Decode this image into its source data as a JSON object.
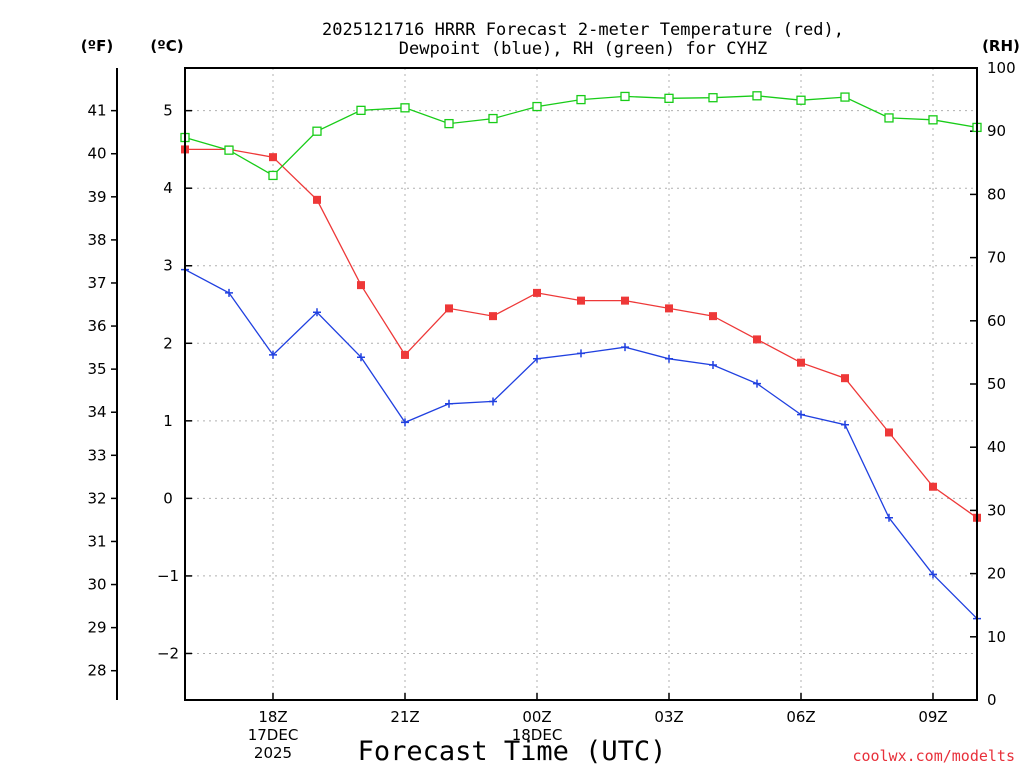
{
  "chart_data": {
    "type": "line",
    "title": [
      "2025121716 HRRR Forecast 2-meter Temperature (red),",
      "Dewpoint (blue), RH (green) for CYHZ"
    ],
    "xlabel": "Forecast Time (UTC)",
    "x": [
      "16Z",
      "17Z",
      "18Z",
      "19Z",
      "20Z",
      "21Z",
      "22Z",
      "23Z",
      "00Z",
      "01Z",
      "02Z",
      "03Z",
      "04Z",
      "05Z",
      "06Z",
      "07Z",
      "08Z",
      "09Z",
      "10Z"
    ],
    "x_ticks": [
      {
        "index": 2,
        "lines": [
          "18Z",
          "17DEC",
          "2025"
        ]
      },
      {
        "index": 5,
        "lines": [
          "21Z"
        ]
      },
      {
        "index": 8,
        "lines": [
          "00Z",
          "18DEC"
        ]
      },
      {
        "index": 11,
        "lines": [
          "03Z"
        ]
      },
      {
        "index": 14,
        "lines": [
          "06Z"
        ]
      },
      {
        "index": 17,
        "lines": [
          "09Z"
        ]
      }
    ],
    "celsius_axis": {
      "unit": "(ºC)",
      "range": [
        -2.6,
        5.55
      ],
      "ticks": [
        -2,
        -1,
        0,
        1,
        2,
        3,
        4,
        5
      ],
      "tick_labels": [
        "−2",
        "−1",
        "0",
        "1",
        "2",
        "3",
        "4",
        "5"
      ]
    },
    "fahrenheit_axis": {
      "unit": "(ºF)",
      "ticks": [
        28,
        29,
        30,
        31,
        32,
        33,
        34,
        35,
        36,
        37,
        38,
        39,
        40,
        41
      ]
    },
    "rh_axis": {
      "unit": "(RH)",
      "range": [
        0,
        100
      ],
      "ticks": [
        0,
        10,
        20,
        30,
        40,
        50,
        60,
        70,
        80,
        90,
        100
      ]
    },
    "series": [
      {
        "name": "Temperature",
        "axis": "celsius",
        "color": "#ee3838",
        "marker": "filled-square",
        "values": [
          4.5,
          4.5,
          4.4,
          3.85,
          2.75,
          1.85,
          2.45,
          2.35,
          2.65,
          2.55,
          2.55,
          2.45,
          2.35,
          2.05,
          1.75,
          1.55,
          0.85,
          0.15,
          -0.25
        ]
      },
      {
        "name": "Dewpoint",
        "axis": "celsius",
        "color": "#2040e0",
        "marker": "plus",
        "values": [
          2.95,
          2.65,
          1.85,
          2.4,
          1.82,
          0.98,
          1.22,
          1.25,
          1.8,
          1.87,
          1.95,
          1.8,
          1.72,
          1.48,
          1.08,
          0.95,
          -0.25,
          -0.98,
          -1.55
        ]
      },
      {
        "name": "RH",
        "axis": "rh",
        "color": "#18cc18",
        "marker": "open-square",
        "values": [
          89,
          87,
          83,
          90,
          93.3,
          93.7,
          91.2,
          92,
          93.9,
          95,
          95.5,
          95.2,
          95.3,
          95.6,
          94.9,
          95.4,
          92.1,
          91.8,
          90.6
        ]
      }
    ]
  },
  "credit": "coolwx.com/modelts"
}
